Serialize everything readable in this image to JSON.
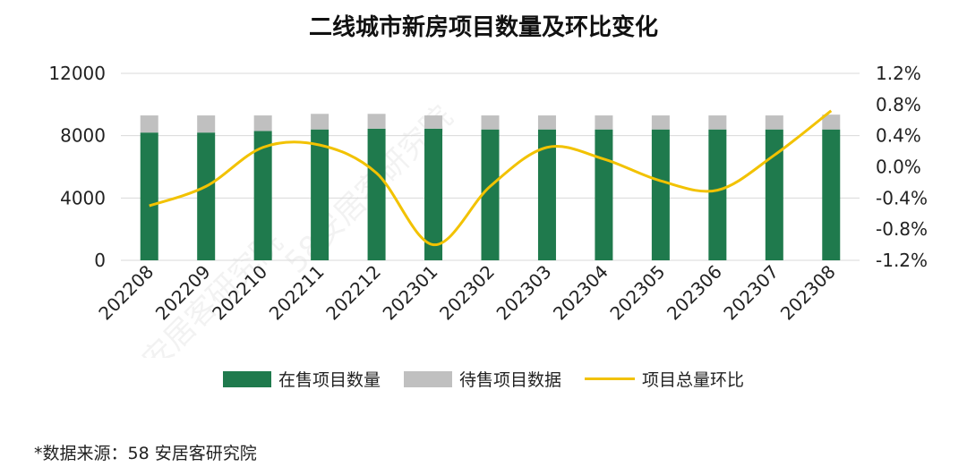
{
  "title": "二线城市新房项目数量及环比变化",
  "source": "*数据来源：58 安居客研究院",
  "watermark": "58安居客研究院",
  "colors": {
    "on_sale": "#1f7a4d",
    "pending": "#c0c0c0",
    "mom": "#f2c200"
  },
  "legend": {
    "on_sale": "在售项目数量",
    "pending": "待售项目数据",
    "mom": "项目总量环比"
  },
  "chart_data": {
    "type": "bar",
    "categories": [
      "202208",
      "202209",
      "202210",
      "202211",
      "202212",
      "202301",
      "202302",
      "202303",
      "202304",
      "202305",
      "202306",
      "202307",
      "202308"
    ],
    "series": [
      {
        "name": "在售项目数量",
        "type": "bar",
        "stacked": true,
        "axis": "left",
        "values": [
          8200,
          8200,
          8300,
          8400,
          8450,
          8450,
          8400,
          8400,
          8400,
          8400,
          8400,
          8400,
          8400
        ]
      },
      {
        "name": "待售项目数据",
        "type": "bar",
        "stacked": true,
        "axis": "left",
        "values": [
          1100,
          1100,
          1000,
          1000,
          950,
          850,
          900,
          900,
          900,
          900,
          900,
          900,
          950
        ]
      },
      {
        "name": "项目总量环比",
        "type": "line",
        "axis": "right",
        "values": [
          -0.5,
          -0.25,
          0.25,
          0.28,
          -0.08,
          -1.0,
          -0.25,
          0.25,
          0.1,
          -0.18,
          -0.3,
          0.15,
          0.72
        ]
      }
    ],
    "y_left": {
      "ylim": [
        0,
        12000
      ],
      "ticks": [
        "0",
        "4000",
        "8000",
        "12000"
      ]
    },
    "y_right": {
      "ylim": [
        -1.2,
        1.2
      ],
      "ticks": [
        "-1.2%",
        "-0.8%",
        "-0.4%",
        "0.0%",
        "0.4%",
        "0.8%",
        "1.2%"
      ]
    },
    "legend_position": "bottom",
    "grid": true
  }
}
